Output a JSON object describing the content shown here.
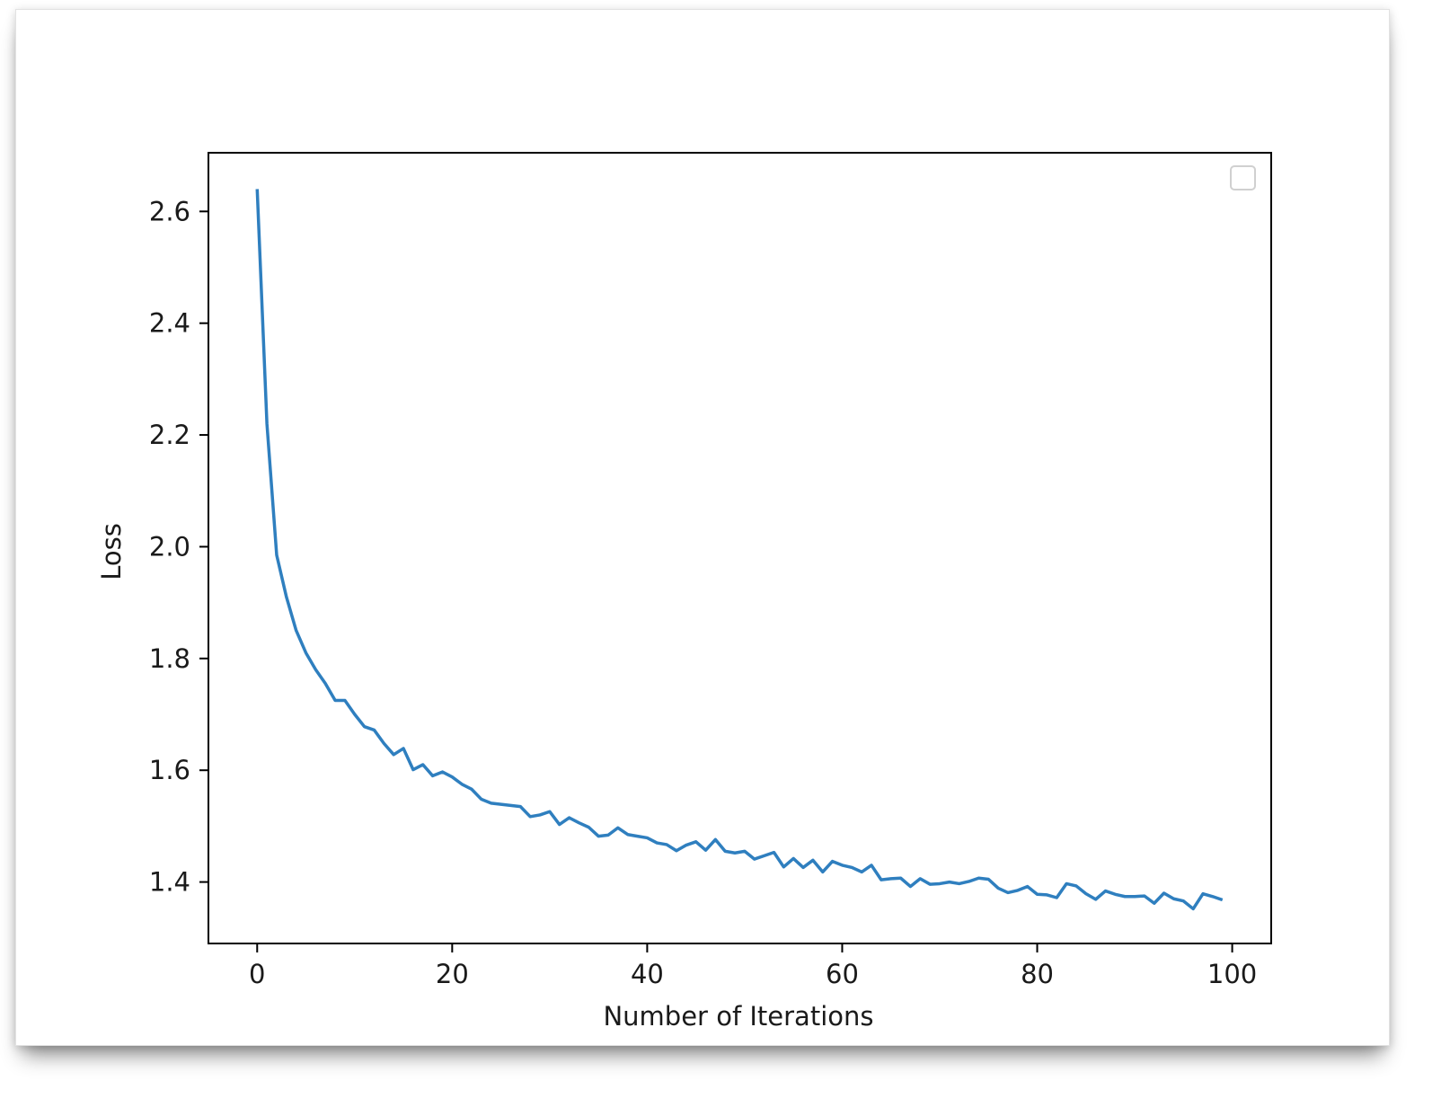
{
  "chart_data": {
    "type": "line",
    "title": "",
    "xlabel": "Number of Iterations",
    "ylabel": "Loss",
    "xlim": [
      -5,
      104
    ],
    "ylim": [
      1.29,
      2.705
    ],
    "x_ticks": [
      0,
      20,
      40,
      60,
      80,
      100
    ],
    "x_tick_labels": [
      "0",
      "20",
      "40",
      "60",
      "80",
      "100"
    ],
    "y_ticks": [
      1.4,
      1.6,
      1.8,
      2.0,
      2.2,
      2.4,
      2.6
    ],
    "y_tick_labels": [
      "1.4",
      "1.6",
      "1.8",
      "2.0",
      "2.2",
      "2.4",
      "2.6"
    ],
    "grid": false,
    "legend": {
      "position": "top-right",
      "entries": []
    },
    "colors": {
      "series": "#2f7fbf",
      "axes": "#000000"
    },
    "series": [
      {
        "x": [
          0,
          1,
          2,
          3,
          4,
          5,
          6,
          7,
          8,
          9,
          10,
          11,
          12,
          13,
          14,
          15,
          16,
          17,
          18,
          19,
          20,
          21,
          22,
          23,
          24,
          25,
          26,
          27,
          28,
          29,
          30,
          31,
          32,
          33,
          34,
          35,
          36,
          37,
          38,
          39,
          40,
          41,
          42,
          43,
          44,
          45,
          46,
          47,
          48,
          49,
          50,
          51,
          52,
          53,
          54,
          55,
          56,
          57,
          58,
          59,
          60,
          61,
          62,
          63,
          64,
          65,
          66,
          67,
          68,
          69,
          70,
          71,
          72,
          73,
          74,
          75,
          76,
          77,
          78,
          79,
          80,
          81,
          82,
          83,
          84,
          85,
          86,
          87,
          88,
          89,
          90,
          91,
          92,
          93,
          94,
          95,
          96,
          97,
          98,
          99
        ],
        "values": [
          2.64,
          2.22,
          1.985,
          1.91,
          1.85,
          1.81,
          1.78,
          1.755,
          1.725,
          1.725,
          1.7,
          1.678,
          1.672,
          1.648,
          1.628,
          1.639,
          1.601,
          1.61,
          1.59,
          1.597,
          1.588,
          1.575,
          1.566,
          1.548,
          1.541,
          1.539,
          1.537,
          1.535,
          1.517,
          1.52,
          1.526,
          1.503,
          1.515,
          1.506,
          1.498,
          1.482,
          1.484,
          1.497,
          1.485,
          1.482,
          1.479,
          1.47,
          1.467,
          1.456,
          1.466,
          1.472,
          1.457,
          1.476,
          1.455,
          1.452,
          1.455,
          1.441,
          1.447,
          1.453,
          1.427,
          1.442,
          1.426,
          1.439,
          1.418,
          1.437,
          1.43,
          1.426,
          1.418,
          1.43,
          1.404,
          1.406,
          1.407,
          1.392,
          1.406,
          1.396,
          1.397,
          1.4,
          1.397,
          1.401,
          1.407,
          1.405,
          1.389,
          1.381,
          1.385,
          1.392,
          1.378,
          1.377,
          1.372,
          1.397,
          1.393,
          1.379,
          1.369,
          1.384,
          1.378,
          1.374,
          1.374,
          1.375,
          1.362,
          1.38,
          1.37,
          1.366,
          1.352,
          1.379,
          1.374,
          1.368
        ]
      }
    ]
  }
}
